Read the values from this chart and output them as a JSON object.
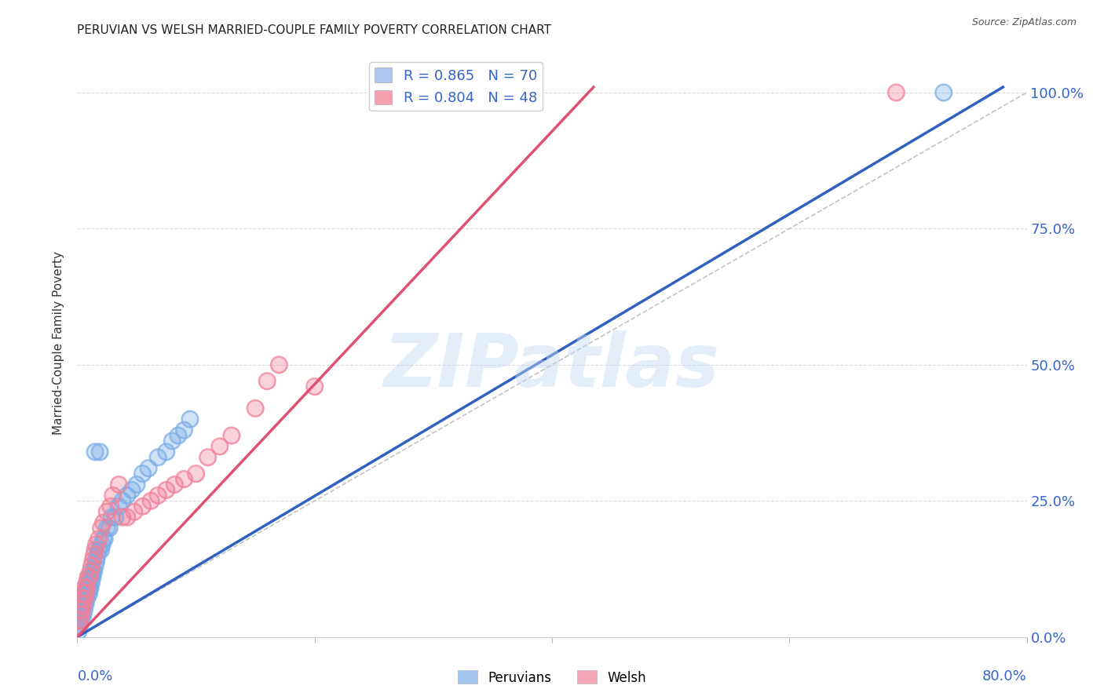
{
  "title": "PERUVIAN VS WELSH MARRIED-COUPLE FAMILY POVERTY CORRELATION CHART",
  "source": "Source: ZipAtlas.com",
  "ylabel": "Married-Couple Family Poverty",
  "xlim": [
    0.0,
    0.8
  ],
  "ylim": [
    0.0,
    1.08
  ],
  "ytick_labels": [
    "0.0%",
    "25.0%",
    "50.0%",
    "75.0%",
    "100.0%"
  ],
  "ytick_values": [
    0.0,
    0.25,
    0.5,
    0.75,
    1.0
  ],
  "legend_entries": [
    {
      "label": "R = 0.865   N = 70",
      "color": "#aec6f0"
    },
    {
      "label": "R = 0.804   N = 48",
      "color": "#f4a0b0"
    }
  ],
  "peruvian_color": "#7baee8",
  "welsh_color": "#f08098",
  "peruvian_line_color": "#3060c0",
  "welsh_line_color": "#e05070",
  "diagonal_color": "#b8b8b8",
  "watermark_text": "ZIPatlas",
  "background_color": "#ffffff",
  "grid_color": "#d8d8d8",
  "right_tick_color": "#3565c8",
  "title_fontsize": 11,
  "source_fontsize": 9,
  "legend_fontsize": 13,
  "peruvian_scatter_x": [
    0.001,
    0.001,
    0.001,
    0.001,
    0.002,
    0.002,
    0.002,
    0.002,
    0.002,
    0.003,
    0.003,
    0.003,
    0.003,
    0.004,
    0.004,
    0.004,
    0.004,
    0.005,
    0.005,
    0.005,
    0.005,
    0.006,
    0.006,
    0.006,
    0.007,
    0.007,
    0.007,
    0.008,
    0.008,
    0.008,
    0.009,
    0.009,
    0.01,
    0.01,
    0.01,
    0.011,
    0.011,
    0.012,
    0.012,
    0.013,
    0.013,
    0.014,
    0.015,
    0.015,
    0.016,
    0.017,
    0.018,
    0.019,
    0.02,
    0.021,
    0.022,
    0.023,
    0.025,
    0.027,
    0.029,
    0.032,
    0.035,
    0.038,
    0.042,
    0.046,
    0.05,
    0.055,
    0.06,
    0.068,
    0.075,
    0.08,
    0.085,
    0.09,
    0.095,
    0.73
  ],
  "peruvian_scatter_y": [
    0.01,
    0.02,
    0.03,
    0.04,
    0.02,
    0.03,
    0.04,
    0.05,
    0.06,
    0.03,
    0.04,
    0.05,
    0.06,
    0.04,
    0.05,
    0.06,
    0.07,
    0.04,
    0.05,
    0.06,
    0.07,
    0.05,
    0.07,
    0.08,
    0.06,
    0.07,
    0.08,
    0.07,
    0.08,
    0.09,
    0.08,
    0.09,
    0.08,
    0.09,
    0.1,
    0.09,
    0.1,
    0.1,
    0.11,
    0.11,
    0.12,
    0.12,
    0.13,
    0.34,
    0.14,
    0.15,
    0.16,
    0.34,
    0.16,
    0.17,
    0.18,
    0.18,
    0.2,
    0.2,
    0.22,
    0.22,
    0.24,
    0.25,
    0.26,
    0.27,
    0.28,
    0.3,
    0.31,
    0.33,
    0.34,
    0.36,
    0.37,
    0.38,
    0.4,
    1.0
  ],
  "welsh_scatter_x": [
    0.001,
    0.001,
    0.002,
    0.002,
    0.003,
    0.003,
    0.004,
    0.004,
    0.005,
    0.005,
    0.006,
    0.006,
    0.007,
    0.008,
    0.008,
    0.009,
    0.01,
    0.011,
    0.012,
    0.013,
    0.014,
    0.015,
    0.016,
    0.018,
    0.02,
    0.022,
    0.025,
    0.028,
    0.03,
    0.035,
    0.038,
    0.042,
    0.048,
    0.055,
    0.062,
    0.068,
    0.075,
    0.082,
    0.09,
    0.1,
    0.11,
    0.12,
    0.13,
    0.15,
    0.16,
    0.17,
    0.2,
    0.69
  ],
  "welsh_scatter_y": [
    0.02,
    0.03,
    0.03,
    0.05,
    0.04,
    0.06,
    0.05,
    0.07,
    0.06,
    0.08,
    0.07,
    0.09,
    0.08,
    0.09,
    0.1,
    0.11,
    0.11,
    0.12,
    0.13,
    0.14,
    0.15,
    0.16,
    0.17,
    0.18,
    0.2,
    0.21,
    0.23,
    0.24,
    0.26,
    0.28,
    0.22,
    0.22,
    0.23,
    0.24,
    0.25,
    0.26,
    0.27,
    0.28,
    0.29,
    0.3,
    0.33,
    0.35,
    0.37,
    0.42,
    0.47,
    0.5,
    0.46,
    1.0
  ],
  "peru_line_x": [
    0.0,
    0.78
  ],
  "peru_line_y": [
    0.0,
    1.01
  ],
  "welsh_line_x": [
    0.0,
    0.435
  ],
  "welsh_line_y": [
    0.0,
    1.01
  ],
  "diag_line_x": [
    0.0,
    0.8
  ],
  "diag_line_y": [
    0.0,
    1.0
  ]
}
